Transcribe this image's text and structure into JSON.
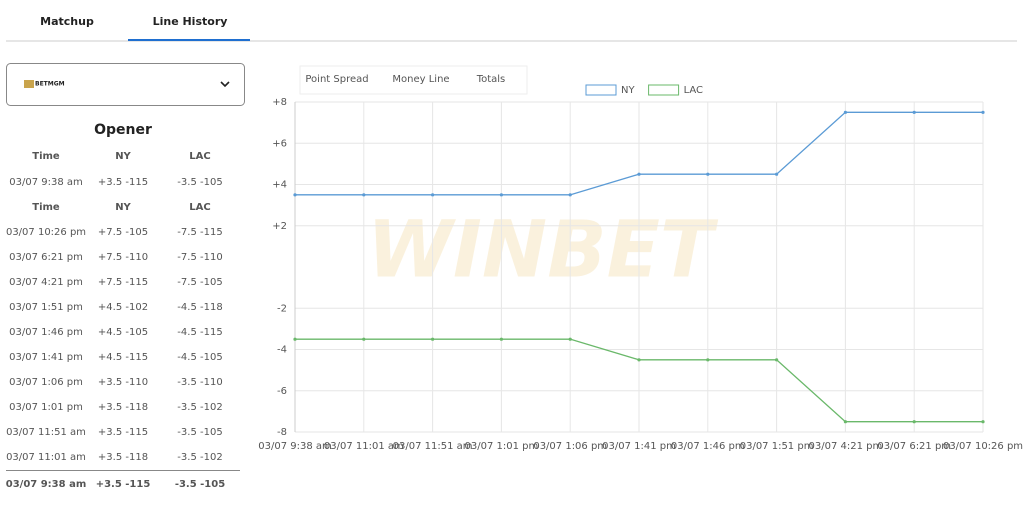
{
  "tabs": [
    "Matchup",
    "Line History"
  ],
  "bookmaker": "BETMGM",
  "table": {
    "title": "Opener",
    "header": [
      "Time",
      "NY",
      "LAC"
    ],
    "opener": [
      "03/07 9:38 am",
      "+3.5 -115",
      "-3.5 -105"
    ],
    "rows": [
      [
        "03/07 10:26 pm",
        "+7.5 -105",
        "-7.5 -115"
      ],
      [
        "03/07 6:21 pm",
        "+7.5 -110",
        "-7.5 -110"
      ],
      [
        "03/07 4:21 pm",
        "+7.5 -115",
        "-7.5 -105"
      ],
      [
        "03/07 1:51 pm",
        "+4.5 -102",
        "-4.5 -118"
      ],
      [
        "03/07 1:46 pm",
        "+4.5 -105",
        "-4.5 -115"
      ],
      [
        "03/07 1:41 pm",
        "+4.5 -115",
        "-4.5 -105"
      ],
      [
        "03/07 1:06 pm",
        "+3.5 -110",
        "-3.5 -110"
      ],
      [
        "03/07 1:01 pm",
        "+3.5 -118",
        "-3.5 -102"
      ],
      [
        "03/07 11:51 am",
        "+3.5 -115",
        "-3.5 -105"
      ],
      [
        "03/07 11:01 am",
        "+3.5 -118",
        "-3.5 -102"
      ]
    ],
    "current": [
      "03/07 9:38 am",
      "+3.5 -115",
      "-3.5 -105"
    ]
  },
  "market_tabs": [
    "Point Spread",
    "Money Line",
    "Totals"
  ],
  "watermark": "WINBET",
  "chart_data": {
    "type": "line",
    "categories": [
      "03/07 9:38 am",
      "03/07 11:01 am",
      "03/07 11:51 am",
      "03/07 1:01 pm",
      "03/07 1:06 pm",
      "03/07 1:41 pm",
      "03/07 1:46 pm",
      "03/07 1:51 pm",
      "03/07 4:21 pm",
      "03/07 6:21 pm",
      "03/07 10:26 pm"
    ],
    "series": [
      {
        "name": "NY",
        "color": "#5b9bd5",
        "values": [
          3.5,
          3.5,
          3.5,
          3.5,
          3.5,
          4.5,
          4.5,
          4.5,
          7.5,
          7.5,
          7.5
        ]
      },
      {
        "name": "LAC",
        "color": "#6ab86a",
        "values": [
          -3.5,
          -3.5,
          -3.5,
          -3.5,
          -3.5,
          -4.5,
          -4.5,
          -4.5,
          -7.5,
          -7.5,
          -7.5
        ]
      }
    ],
    "ylim": [
      -8,
      8
    ],
    "yticks": [
      {
        "value": 8,
        "label": "+8"
      },
      {
        "value": 6,
        "label": "+6"
      },
      {
        "value": 4,
        "label": "+4"
      },
      {
        "value": 2,
        "label": "+2"
      },
      -2,
      -4,
      -6,
      -8
    ],
    "grid": true
  }
}
